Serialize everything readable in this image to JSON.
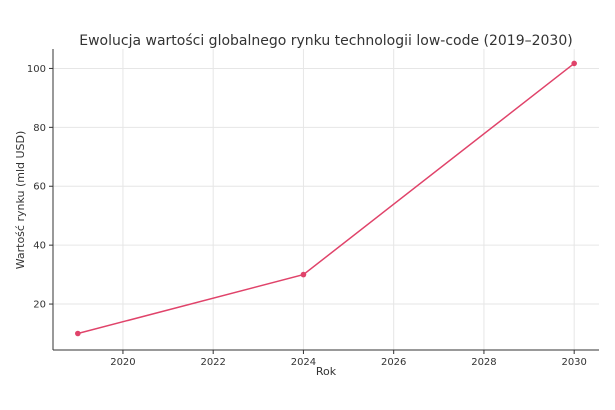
{
  "chart_data": {
    "type": "line",
    "title": "Ewolucja wartości globalnego rynku technologii low-code (2019–2030)",
    "xlabel": "Rok",
    "ylabel": "Wartość rynku (mld USD)",
    "x": [
      2019,
      2024,
      2030
    ],
    "series": [
      {
        "values": [
          10,
          30,
          101.7
        ]
      }
    ],
    "xticks": [
      2020,
      2022,
      2024,
      2026,
      2028,
      2030
    ],
    "yticks": [
      20,
      40,
      60,
      80,
      100
    ],
    "xlim": [
      2018.45,
      2030.55
    ],
    "ylim": [
      4.4,
      106.6
    ],
    "grid": true,
    "line_color": "#e0436a"
  }
}
